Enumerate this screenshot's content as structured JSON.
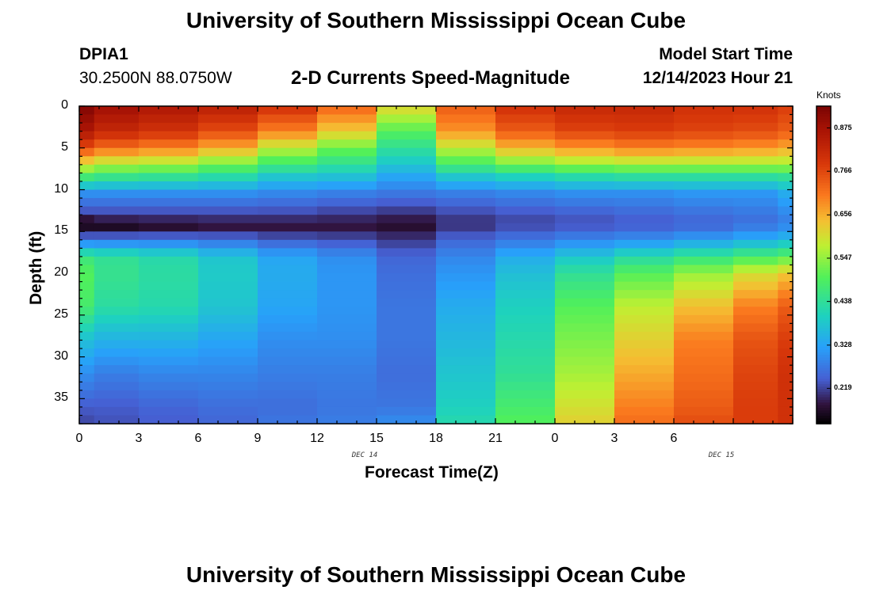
{
  "page": {
    "title": "University of Southern Mississippi Ocean Cube",
    "footer_title": "University of Southern Mississippi Ocean Cube",
    "station_id": "DPIA1",
    "station_coords": "30.2500N  88.0750W",
    "model_start_label": "Model Start Time",
    "model_start_value": "12/14/2023 Hour 21"
  },
  "chart_data": {
    "type": "heatmap",
    "title": "2-D Currents Speed-Magnitude",
    "xlabel": "Forecast Time(Z)",
    "ylabel": "Depth (ft)",
    "colorbar_label": "Knots",
    "x_tick_labels": [
      "0",
      "3",
      "6",
      "9",
      "12",
      "15",
      "18",
      "21",
      "0",
      "3",
      "6"
    ],
    "x_range_hours": [
      0,
      36
    ],
    "date_labels": [
      {
        "text": "DEC 14",
        "hour": 14.4
      },
      {
        "text": "DEC 15",
        "hour": 32.4
      }
    ],
    "y_ticks": [
      0,
      5,
      10,
      15,
      20,
      25,
      30,
      35
    ],
    "y_range_ft": [
      0,
      38
    ],
    "colorbar_ticks": [
      "0.875",
      "0.766",
      "0.656",
      "0.547",
      "0.438",
      "0.328",
      "0.219"
    ],
    "value_range_knots": [
      0.13,
      0.93
    ],
    "time_steps_hours": [
      0,
      1.5,
      4.5,
      7.5,
      10.5,
      13.5,
      16.5,
      19.5,
      22.5,
      25.5,
      28.5,
      31.5,
      34.5,
      36
    ],
    "depth_levels_ft": [
      0,
      1,
      2,
      3,
      4,
      5,
      6,
      7,
      8,
      9,
      10,
      11,
      12,
      13,
      14,
      15,
      16,
      17,
      18,
      19,
      20,
      21,
      22,
      23,
      24,
      25,
      26,
      27,
      28,
      29,
      30,
      31,
      32,
      33,
      34,
      35,
      36,
      37,
      38
    ],
    "profiles": [
      {
        "depth": [
          0,
          3,
          5,
          7,
          8.5,
          10.5,
          13,
          14,
          14.5,
          16,
          18,
          20,
          24,
          28,
          32,
          36,
          38
        ],
        "values": [
          0.92,
          0.86,
          0.76,
          0.6,
          0.47,
          0.3,
          0.22,
          0.13,
          0.16,
          0.27,
          0.46,
          0.5,
          0.48,
          0.37,
          0.3,
          0.24,
          0.22
        ]
      },
      {
        "depth": [
          0,
          3,
          5,
          7,
          8.5,
          10.5,
          13,
          14,
          14.5,
          16,
          18,
          20,
          24,
          28,
          32,
          36,
          38
        ],
        "values": [
          0.88,
          0.82,
          0.72,
          0.57,
          0.45,
          0.3,
          0.22,
          0.16,
          0.16,
          0.27,
          0.44,
          0.45,
          0.43,
          0.35,
          0.28,
          0.24,
          0.23
        ]
      },
      {
        "depth": [
          0,
          3,
          5,
          7,
          8.5,
          10.5,
          13,
          14,
          14.5,
          16,
          18,
          20,
          24,
          28,
          32,
          36,
          38
        ],
        "values": [
          0.86,
          0.8,
          0.7,
          0.56,
          0.44,
          0.3,
          0.22,
          0.17,
          0.17,
          0.27,
          0.42,
          0.43,
          0.42,
          0.35,
          0.29,
          0.25,
          0.24
        ]
      },
      {
        "depth": [
          0,
          3,
          5,
          7,
          8.5,
          10.5,
          13,
          14,
          14.5,
          16,
          18,
          20,
          24,
          28,
          32,
          36,
          38
        ],
        "values": [
          0.84,
          0.76,
          0.66,
          0.52,
          0.42,
          0.3,
          0.22,
          0.18,
          0.18,
          0.26,
          0.38,
          0.39,
          0.38,
          0.33,
          0.29,
          0.26,
          0.25
        ]
      },
      {
        "depth": [
          0,
          3,
          5,
          7,
          8.5,
          10.5,
          13,
          14,
          14.5,
          16,
          18,
          20,
          24,
          28,
          32,
          36,
          38
        ],
        "values": [
          0.8,
          0.7,
          0.58,
          0.47,
          0.38,
          0.29,
          0.22,
          0.18,
          0.18,
          0.24,
          0.33,
          0.34,
          0.33,
          0.3,
          0.28,
          0.26,
          0.27
        ]
      },
      {
        "depth": [
          0,
          3,
          5,
          7,
          8.5,
          10.5,
          13,
          14,
          14.5,
          16,
          18,
          20,
          24,
          28,
          32,
          36,
          38
        ],
        "values": [
          0.73,
          0.63,
          0.52,
          0.44,
          0.37,
          0.28,
          0.21,
          0.18,
          0.18,
          0.23,
          0.3,
          0.31,
          0.31,
          0.3,
          0.28,
          0.27,
          0.28
        ]
      },
      {
        "depth": [
          0,
          3,
          5,
          7,
          8.5,
          10.5,
          13,
          14,
          14.5,
          16,
          18,
          20,
          24,
          28,
          32,
          36,
          38
        ],
        "values": [
          0.62,
          0.5,
          0.44,
          0.38,
          0.33,
          0.27,
          0.2,
          0.17,
          0.17,
          0.21,
          0.25,
          0.26,
          0.27,
          0.27,
          0.26,
          0.27,
          0.3
        ]
      },
      {
        "depth": [
          0,
          3,
          5,
          7,
          8.5,
          10.5,
          13,
          14,
          14.5,
          16,
          18,
          20,
          24,
          28,
          32,
          36,
          38
        ],
        "values": [
          0.74,
          0.68,
          0.58,
          0.48,
          0.38,
          0.28,
          0.22,
          0.2,
          0.21,
          0.25,
          0.29,
          0.31,
          0.34,
          0.36,
          0.38,
          0.4,
          0.42
        ]
      },
      {
        "depth": [
          0,
          3,
          5,
          7,
          8.5,
          10.5,
          13,
          14,
          14.5,
          16,
          18,
          20,
          24,
          28,
          32,
          36,
          38
        ],
        "values": [
          0.8,
          0.74,
          0.65,
          0.52,
          0.4,
          0.29,
          0.23,
          0.22,
          0.23,
          0.27,
          0.34,
          0.37,
          0.4,
          0.42,
          0.44,
          0.48,
          0.5
        ]
      },
      {
        "depth": [
          0,
          3,
          5,
          7,
          8.5,
          10.5,
          13,
          14,
          14.5,
          16,
          18,
          20,
          24,
          28,
          32,
          36,
          38
        ],
        "values": [
          0.82,
          0.77,
          0.68,
          0.55,
          0.42,
          0.3,
          0.24,
          0.23,
          0.24,
          0.29,
          0.38,
          0.44,
          0.5,
          0.53,
          0.56,
          0.6,
          0.62
        ]
      },
      {
        "depth": [
          0,
          3,
          5,
          7,
          8.5,
          10.5,
          13,
          14,
          14.5,
          16,
          18,
          20,
          24,
          28,
          32,
          36,
          38
        ],
        "values": [
          0.82,
          0.78,
          0.7,
          0.56,
          0.43,
          0.3,
          0.25,
          0.24,
          0.25,
          0.3,
          0.42,
          0.5,
          0.58,
          0.62,
          0.66,
          0.7,
          0.72
        ]
      },
      {
        "depth": [
          0,
          3,
          5,
          7,
          8.5,
          10.5,
          13,
          14,
          14.5,
          16,
          18,
          20,
          24,
          28,
          32,
          36,
          38
        ],
        "values": [
          0.8,
          0.77,
          0.69,
          0.56,
          0.43,
          0.31,
          0.26,
          0.25,
          0.26,
          0.32,
          0.45,
          0.55,
          0.64,
          0.7,
          0.72,
          0.74,
          0.76
        ]
      },
      {
        "depth": [
          0,
          3,
          5,
          7,
          8.5,
          10.5,
          13,
          14,
          14.5,
          16,
          18,
          20,
          24,
          28,
          32,
          36,
          38
        ],
        "values": [
          0.8,
          0.76,
          0.68,
          0.56,
          0.43,
          0.31,
          0.27,
          0.26,
          0.28,
          0.34,
          0.48,
          0.6,
          0.7,
          0.75,
          0.77,
          0.78,
          0.78
        ]
      },
      {
        "depth": [
          0,
          3,
          5,
          7,
          8.5,
          10.5,
          13,
          14,
          14.5,
          16,
          18,
          20,
          24,
          28,
          32,
          36,
          38
        ],
        "values": [
          0.78,
          0.74,
          0.66,
          0.56,
          0.44,
          0.34,
          0.29,
          0.28,
          0.3,
          0.36,
          0.5,
          0.63,
          0.74,
          0.78,
          0.8,
          0.8,
          0.8
        ]
      }
    ]
  }
}
